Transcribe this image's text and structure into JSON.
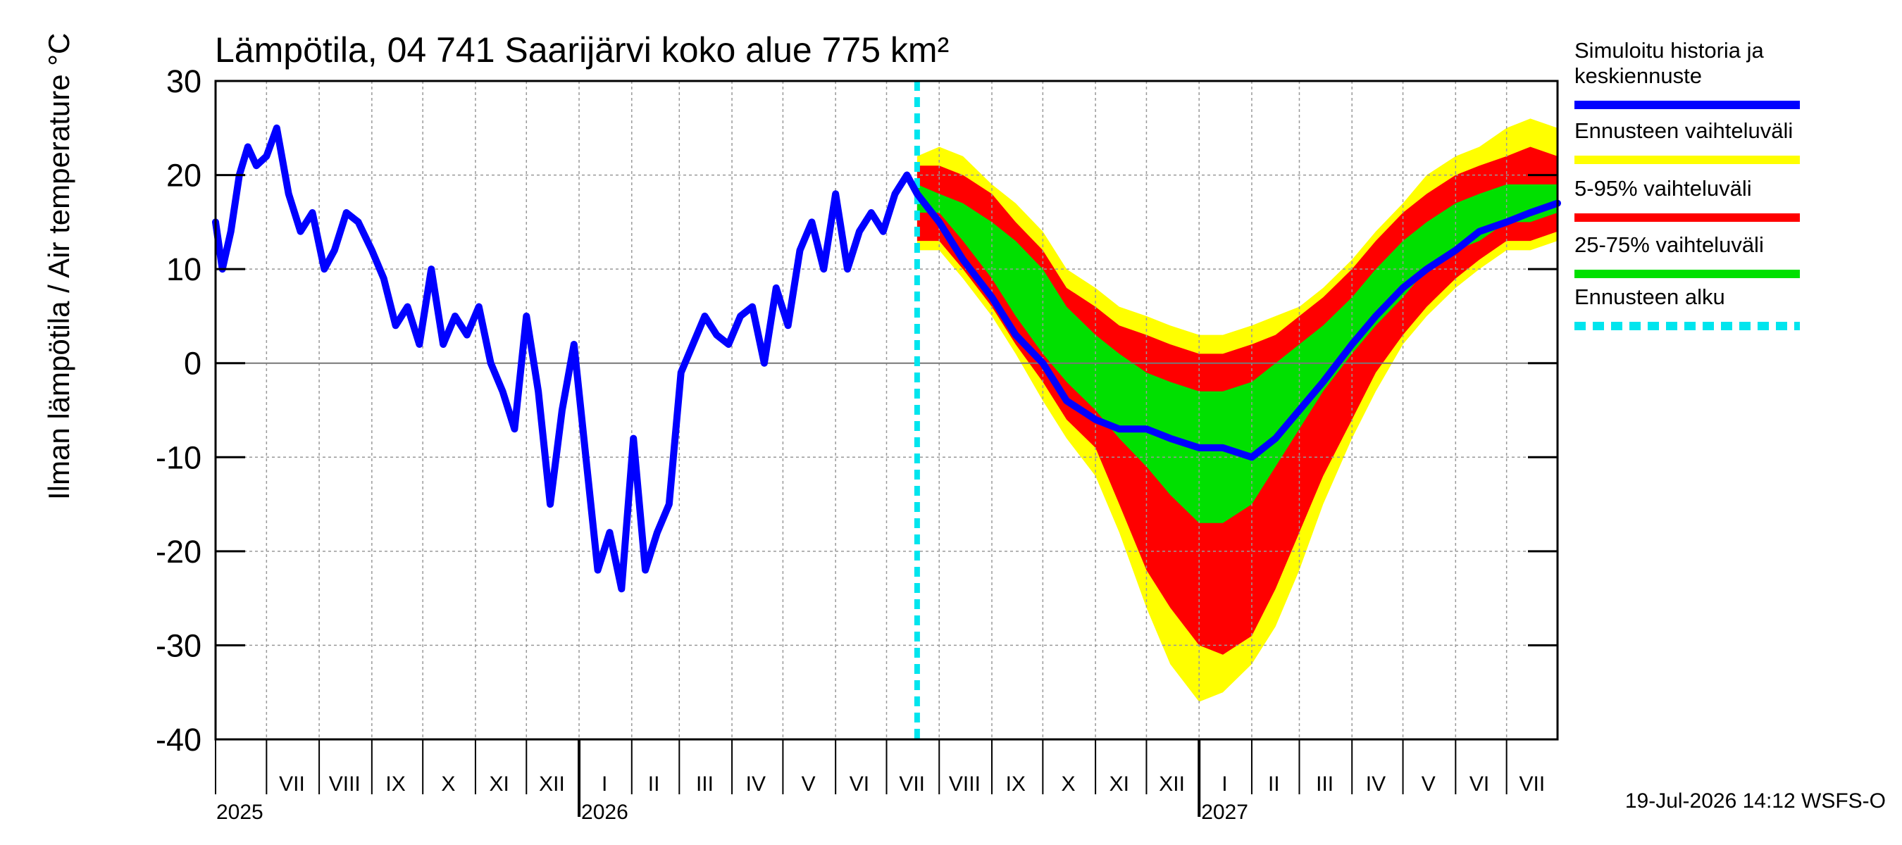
{
  "chart_data": {
    "type": "area",
    "title": "Lämpötila, 04 741 Saarijärvi koko alue 775 km²",
    "ylabel": "Ilman lämpötila / Air temperature   °C",
    "ylim": [
      -40,
      30
    ],
    "yticks": [
      30,
      20,
      10,
      0,
      -10,
      -20,
      -30,
      -40
    ],
    "xlim": [
      "2025-06-01",
      "2027-07-31"
    ],
    "grid": true,
    "legend_position": "right",
    "timestamp": "19-Jul-2026 14:12 WSFS-O",
    "month_labels": [
      "VII",
      "VIII",
      "IX",
      "X",
      "XI",
      "XII",
      "I",
      "II",
      "III",
      "IV",
      "V",
      "VI",
      "VII",
      "VIII",
      "IX",
      "X",
      "XI",
      "XII",
      "I",
      "II",
      "III",
      "IV",
      "V",
      "VI",
      "VII"
    ],
    "month_label_dates": [
      "2025-07-16",
      "2025-08-16",
      "2025-09-15",
      "2025-10-16",
      "2025-11-15",
      "2025-12-16",
      "2026-01-16",
      "2026-02-14",
      "2026-03-16",
      "2026-04-15",
      "2026-05-16",
      "2026-06-15",
      "2026-07-16",
      "2026-08-16",
      "2026-09-15",
      "2026-10-16",
      "2026-11-15",
      "2026-12-16",
      "2027-01-16",
      "2027-02-14",
      "2027-03-16",
      "2027-04-15",
      "2027-05-16",
      "2027-06-15",
      "2027-07-16"
    ],
    "years": [
      {
        "label": "2025",
        "date": "2025-07-01"
      },
      {
        "label": "2026",
        "date": "2026-01-01"
      },
      {
        "label": "2027",
        "date": "2027-01-01"
      }
    ],
    "forecast_start": "2026-07-19",
    "series": [
      {
        "name": "Simuloitu historia ja keskiennuste",
        "color": "#0000ff",
        "x": [
          "2025-06-01",
          "2025-06-05",
          "2025-06-10",
          "2025-06-15",
          "2025-06-20",
          "2025-06-25",
          "2025-07-01",
          "2025-07-07",
          "2025-07-14",
          "2025-07-21",
          "2025-07-28",
          "2025-08-04",
          "2025-08-10",
          "2025-08-17",
          "2025-08-24",
          "2025-09-01",
          "2025-09-08",
          "2025-09-15",
          "2025-09-22",
          "2025-09-29",
          "2025-10-06",
          "2025-10-13",
          "2025-10-20",
          "2025-10-27",
          "2025-11-03",
          "2025-11-10",
          "2025-11-17",
          "2025-11-24",
          "2025-12-01",
          "2025-12-08",
          "2025-12-15",
          "2025-12-22",
          "2025-12-29",
          "2026-01-05",
          "2026-01-12",
          "2026-01-19",
          "2026-01-26",
          "2026-02-02",
          "2026-02-09",
          "2026-02-16",
          "2026-02-23",
          "2026-03-02",
          "2026-03-09",
          "2026-03-16",
          "2026-03-23",
          "2026-03-30",
          "2026-04-06",
          "2026-04-13",
          "2026-04-20",
          "2026-04-27",
          "2026-05-04",
          "2026-05-11",
          "2026-05-18",
          "2026-05-25",
          "2026-06-01",
          "2026-06-08",
          "2026-06-15",
          "2026-06-22",
          "2026-06-29",
          "2026-07-06",
          "2026-07-13",
          "2026-07-19",
          "2026-08-01",
          "2026-08-15",
          "2026-09-01",
          "2026-09-15",
          "2026-10-01",
          "2026-10-15",
          "2026-11-01",
          "2026-11-15",
          "2026-12-01",
          "2026-12-15",
          "2027-01-01",
          "2027-01-15",
          "2027-02-01",
          "2027-02-15",
          "2027-03-01",
          "2027-03-15",
          "2027-04-01",
          "2027-04-15",
          "2027-05-01",
          "2027-05-15",
          "2027-06-01",
          "2027-06-15",
          "2027-07-01",
          "2027-07-15",
          "2027-07-31"
        ],
        "y": [
          15,
          10,
          14,
          20,
          23,
          21,
          22,
          25,
          18,
          14,
          16,
          10,
          12,
          16,
          15,
          12,
          9,
          4,
          6,
          2,
          10,
          2,
          5,
          3,
          6,
          0,
          -3,
          -7,
          5,
          -3,
          -15,
          -5,
          2,
          -10,
          -22,
          -18,
          -24,
          -8,
          -22,
          -18,
          -15,
          -1,
          2,
          5,
          3,
          2,
          5,
          6,
          0,
          8,
          4,
          12,
          15,
          10,
          18,
          10,
          14,
          16,
          14,
          18,
          20,
          18,
          15,
          11,
          7,
          3,
          0,
          -4,
          -6,
          -7,
          -7,
          -8,
          -9,
          -9,
          -10,
          -8,
          -5,
          -2,
          2,
          5,
          8,
          10,
          12,
          14,
          15,
          16,
          17
        ]
      },
      {
        "name": "Ennusteen vaihteluväli",
        "color": "#ffff00",
        "x": [
          "2026-07-19",
          "2026-08-01",
          "2026-08-15",
          "2026-09-01",
          "2026-09-15",
          "2026-10-01",
          "2026-10-15",
          "2026-11-01",
          "2026-11-15",
          "2026-12-01",
          "2026-12-15",
          "2027-01-01",
          "2027-01-15",
          "2027-02-01",
          "2027-02-15",
          "2027-03-01",
          "2027-03-15",
          "2027-04-01",
          "2027-04-15",
          "2027-05-01",
          "2027-05-15",
          "2027-06-01",
          "2027-06-15",
          "2027-07-01",
          "2027-07-15",
          "2027-07-31"
        ],
        "low": [
          12,
          12,
          9,
          5,
          1,
          -4,
          -8,
          -12,
          -18,
          -26,
          -32,
          -36,
          -35,
          -32,
          -28,
          -22,
          -15,
          -8,
          -3,
          2,
          5,
          8,
          10,
          12,
          12,
          13
        ],
        "high": [
          22,
          23,
          22,
          19,
          17,
          14,
          10,
          8,
          6,
          5,
          4,
          3,
          3,
          4,
          5,
          6,
          8,
          11,
          14,
          17,
          20,
          22,
          23,
          25,
          26,
          25
        ]
      },
      {
        "name": "5-95% vaihteluväli",
        "color": "#ff0000",
        "x": [
          "2026-07-19",
          "2026-08-01",
          "2026-08-15",
          "2026-09-01",
          "2026-09-15",
          "2026-10-01",
          "2026-10-15",
          "2026-11-01",
          "2026-11-15",
          "2026-12-01",
          "2026-12-15",
          "2027-01-01",
          "2027-01-15",
          "2027-02-01",
          "2027-02-15",
          "2027-03-01",
          "2027-03-15",
          "2027-04-01",
          "2027-04-15",
          "2027-05-01",
          "2027-05-15",
          "2027-06-01",
          "2027-06-15",
          "2027-07-01",
          "2027-07-15",
          "2027-07-31"
        ],
        "low": [
          13,
          13,
          10,
          6,
          2,
          -2,
          -6,
          -9,
          -15,
          -22,
          -26,
          -30,
          -31,
          -29,
          -24,
          -18,
          -12,
          -6,
          -1,
          3,
          6,
          9,
          11,
          13,
          13,
          14
        ],
        "high": [
          21,
          21,
          20,
          18,
          15,
          12,
          8,
          6,
          4,
          3,
          2,
          1,
          1,
          2,
          3,
          5,
          7,
          10,
          13,
          16,
          18,
          20,
          21,
          22,
          23,
          22
        ]
      },
      {
        "name": "25-75% vaihteluväli",
        "color": "#00e000",
        "x": [
          "2026-07-19",
          "2026-08-01",
          "2026-08-15",
          "2026-09-01",
          "2026-09-15",
          "2026-10-01",
          "2026-10-15",
          "2026-11-01",
          "2026-11-15",
          "2026-12-01",
          "2026-12-15",
          "2027-01-01",
          "2027-01-15",
          "2027-02-01",
          "2027-02-15",
          "2027-03-01",
          "2027-03-15",
          "2027-04-01",
          "2027-04-15",
          "2027-05-01",
          "2027-05-15",
          "2027-06-01",
          "2027-06-15",
          "2027-07-01",
          "2027-07-15",
          "2027-07-31"
        ],
        "low": [
          16,
          16,
          13,
          9,
          5,
          1,
          -2,
          -5,
          -8,
          -11,
          -14,
          -17,
          -17,
          -15,
          -11,
          -7,
          -3,
          1,
          4,
          7,
          10,
          12,
          13,
          15,
          15,
          16
        ],
        "high": [
          19,
          18,
          17,
          15,
          13,
          10,
          6,
          3,
          1,
          -1,
          -2,
          -3,
          -3,
          -2,
          0,
          2,
          4,
          7,
          10,
          13,
          15,
          17,
          18,
          19,
          19,
          19
        ]
      },
      {
        "name": "Ennusteen alku",
        "color": "#00e5ee"
      }
    ]
  }
}
